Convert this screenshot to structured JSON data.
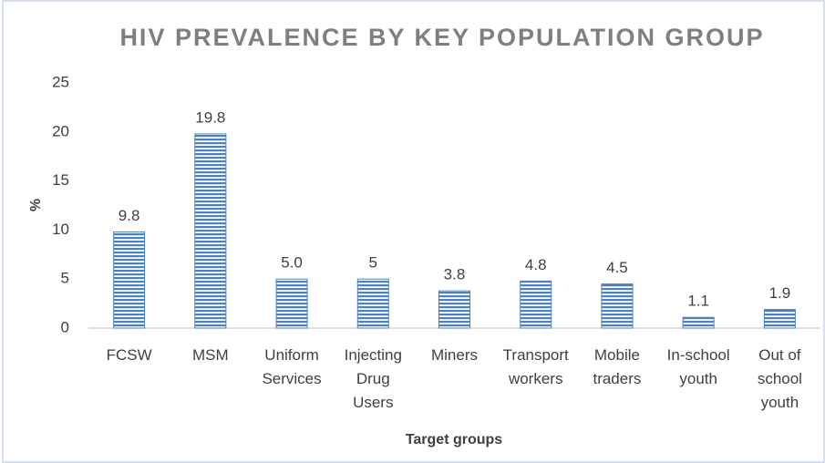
{
  "chart_data": {
    "type": "bar",
    "title": "HIV PREVALENCE BY KEY POPULATION GROUP",
    "x_label": "Target groups",
    "y_label": "%",
    "categories": [
      "FCSW",
      "MSM",
      "Uniform Services",
      "Injecting Drug Users",
      "Miners",
      "Transport workers",
      "Mobile traders",
      "In-school youth",
      "Out of school youth"
    ],
    "values": [
      9.8,
      19.8,
      5.0,
      5,
      3.8,
      4.8,
      4.5,
      1.1,
      1.9
    ],
    "value_labels": [
      "9.8",
      "19.8",
      "5.0",
      "5",
      "3.8",
      "4.8",
      "4.5",
      "1.1",
      "1.9"
    ],
    "color": "#4f81bd",
    "ylim": [
      0,
      25
    ],
    "yticks": [
      0,
      5,
      10,
      15,
      20,
      25
    ],
    "grid": false
  }
}
